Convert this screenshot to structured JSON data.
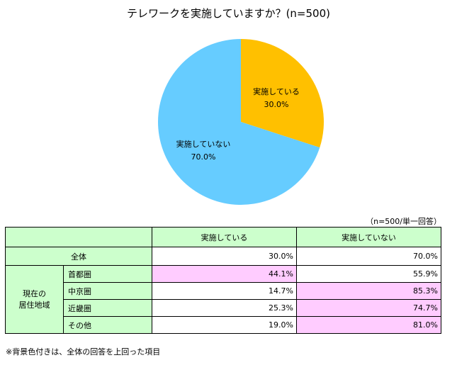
{
  "chart_data": {
    "type": "pie",
    "title": "テレワークを実施していますか？(n=500)",
    "slices": [
      {
        "label": "実施している",
        "value": 30.0,
        "value_label": "30.0%",
        "color": "#ffc000"
      },
      {
        "label": "実施していない",
        "value": 70.0,
        "value_label": "70.0%",
        "color": "#66ccff"
      }
    ]
  },
  "table": {
    "note": "（n=500/単一回答）",
    "headers": [
      "実施している",
      "実施していない"
    ],
    "total": {
      "label": "全体",
      "values": [
        "30.0%",
        "70.0%"
      ]
    },
    "group_label_line1": "現在の",
    "group_label_line2": "居住地域",
    "rows": [
      {
        "label": "首都圏",
        "values": [
          "44.1%",
          "55.9%"
        ],
        "highlight": [
          true,
          false
        ]
      },
      {
        "label": "中京圏",
        "values": [
          "14.7%",
          "85.3%"
        ],
        "highlight": [
          false,
          true
        ]
      },
      {
        "label": "近畿圏",
        "values": [
          "25.3%",
          "74.7%"
        ],
        "highlight": [
          false,
          true
        ]
      },
      {
        "label": "その他",
        "values": [
          "19.0%",
          "81.0%"
        ],
        "highlight": [
          false,
          true
        ]
      }
    ],
    "highlight_color": "#ffccff",
    "header_color": "#ccffcc"
  },
  "footnote": "※背景色付きは、全体の回答を上回った項目"
}
